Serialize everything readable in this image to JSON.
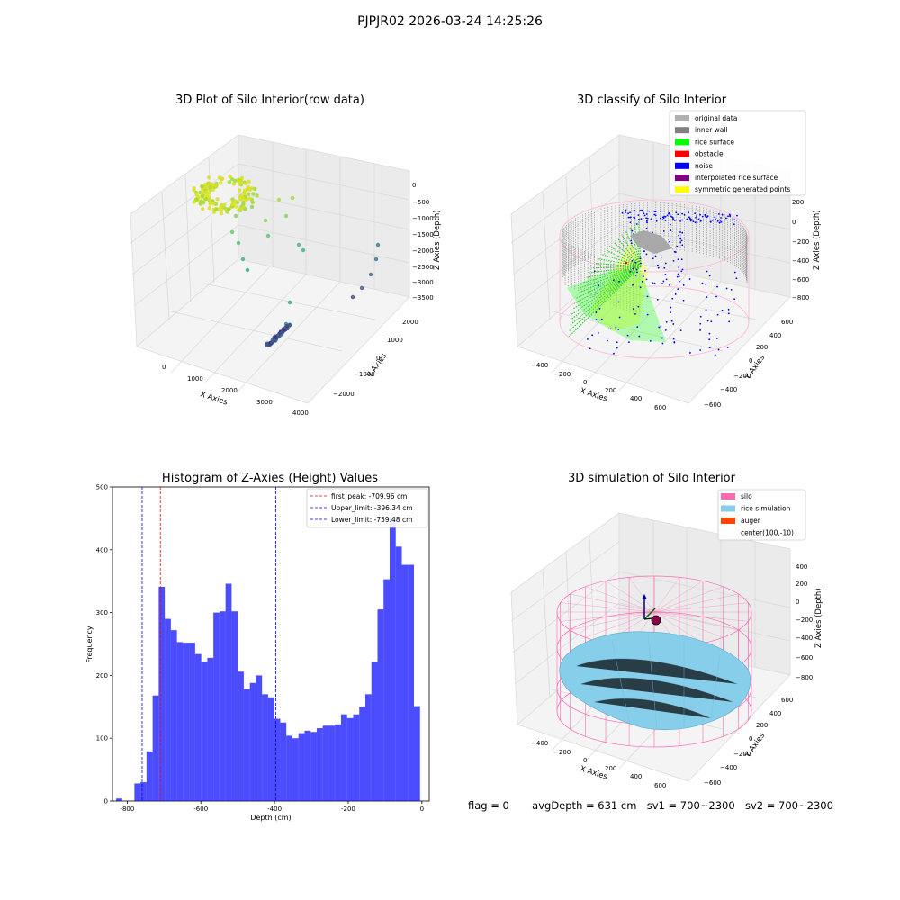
{
  "suptitle": "PJPJR02 2026-03-24 14:25:26",
  "status_line": {
    "flag": "flag = 0",
    "avg": "avgDepth = 631 cm",
    "sv1": "sv1 = 700~2300",
    "sv2": "sv2 = 700~2300"
  },
  "chart_data": [
    {
      "type": "scatter",
      "projection": "3d",
      "title": "3D Plot of Silo Interior(row data)",
      "xlabel": "X Axies",
      "ylabel": "Y Axies",
      "zlabel": "Z Axies (Depth)",
      "x_ticks": [
        "0",
        "1000",
        "2000",
        "3000",
        "4000"
      ],
      "y_ticks": [
        "−2000",
        "−1000",
        "0",
        "1000",
        "2000"
      ],
      "z_ticks": [
        "0",
        "−500",
        "−1000",
        "−1500",
        "−2000",
        "−2500",
        "−3000",
        "−3500"
      ],
      "colormap": "viridis",
      "grid": true
    },
    {
      "type": "scatter",
      "projection": "3d",
      "title": "3D classify of Silo Interior",
      "xlabel": "X Axies",
      "ylabel": "Y Axies",
      "zlabel": "Z Axies (Depth)",
      "x_ticks": [
        "−400",
        "−200",
        "0",
        "200",
        "400",
        "600"
      ],
      "y_ticks": [
        "−600",
        "−400",
        "−200",
        "0",
        "200",
        "400",
        "600"
      ],
      "z_ticks": [
        "200",
        "0",
        "−200",
        "−400",
        "−600",
        "−800"
      ],
      "legend_position": "top-right",
      "legend": [
        {
          "label": "original data",
          "color": "#b0b0b0"
        },
        {
          "label": "inner wall",
          "color": "#808080"
        },
        {
          "label": "rice surface",
          "color": "#00ff00"
        },
        {
          "label": "obstacle",
          "color": "#ff0000"
        },
        {
          "label": "noise",
          "color": "#0000ff"
        },
        {
          "label": "interpolated rice surface",
          "color": "#800080"
        },
        {
          "label": "symmetric generated points",
          "color": "#ffff00"
        }
      ]
    },
    {
      "type": "bar",
      "title": "Histogram of Z-Axies (Height) Values",
      "xlabel": "Depth (cm)",
      "ylabel": "Frequency",
      "xlim": [
        -840,
        20
      ],
      "ylim": [
        0,
        500
      ],
      "x_ticks": [
        -800,
        -600,
        -400,
        -200,
        0
      ],
      "y_ticks": [
        0,
        100,
        200,
        300,
        400,
        500
      ],
      "bar_color": "#0000ff",
      "bin_start": -830,
      "bin_width": 16.5,
      "values": [
        4,
        0,
        0,
        28,
        30,
        79,
        168,
        341,
        290,
        272,
        253,
        252,
        252,
        234,
        222,
        228,
        300,
        302,
        346,
        302,
        206,
        178,
        188,
        200,
        170,
        165,
        131,
        125,
        104,
        100,
        108,
        112,
        110,
        116,
        120,
        120,
        122,
        138,
        132,
        138,
        150,
        170,
        221,
        305,
        353,
        452,
        405,
        376,
        376,
        151
      ],
      "vlines": [
        {
          "label": "first_peak: -709.96 cm",
          "value": -709.96,
          "color": "#ff0000"
        },
        {
          "label": "Upper_limit: -396.34 cm",
          "value": -396.34,
          "color": "#0000ff"
        },
        {
          "label": "Lower_limit: -759.48 cm",
          "value": -759.48,
          "color": "#0000ff"
        }
      ],
      "legend_position": "top-right"
    },
    {
      "type": "area",
      "projection": "3d",
      "title": "3D simulation of Silo Interior",
      "xlabel": "X Axies",
      "ylabel": "Y Axies",
      "zlabel": "Z Axies (Depth)",
      "x_ticks": [
        "−400",
        "−200",
        "0",
        "200",
        "400",
        "600"
      ],
      "y_ticks": [
        "−600",
        "−400",
        "−200",
        "0",
        "200",
        "400",
        "600"
      ],
      "z_ticks": [
        "400",
        "200",
        "0",
        "−200",
        "−400",
        "−600",
        "−800"
      ],
      "legend_position": "top-right",
      "legend": [
        {
          "label": "silo",
          "color": "#ff69b4"
        },
        {
          "label": "rice simulation",
          "color": "#87ceeb"
        },
        {
          "label": "auger",
          "color": "#ff4500"
        },
        {
          "label": "center(100,-10)",
          "color": ""
        }
      ]
    }
  ]
}
